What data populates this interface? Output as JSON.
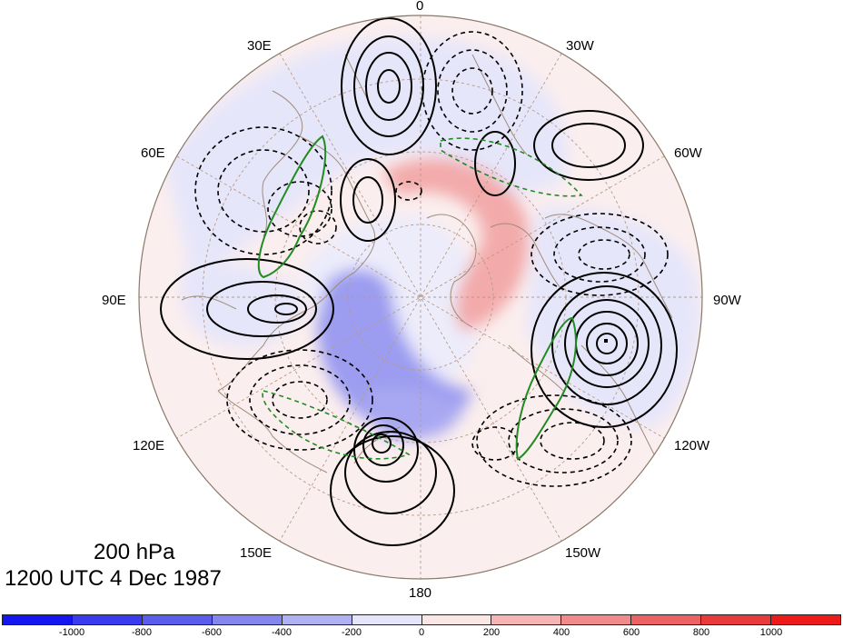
{
  "map": {
    "projection": "north-polar-stereographic",
    "level_label": "200 hPa",
    "time_label": "1200 UTC 4 Dec 1987",
    "lon_labels": {
      "l0": "0",
      "l30w": "30W",
      "l60w": "60W",
      "l90w": "90W",
      "l120w": "120W",
      "l150w": "150W",
      "l180": "180",
      "l150e": "150E",
      "l120e": "120E",
      "l90e": "90E",
      "l60e": "60E",
      "l30e": "30E"
    },
    "colorbar": {
      "labels": [
        "-1000",
        "-800",
        "-600",
        "-400",
        "-200",
        "0",
        "200",
        "400",
        "600",
        "800",
        "1000"
      ],
      "colors": [
        "#1515f0",
        "#3a3aee",
        "#5c5cec",
        "#8585ee",
        "#b0b0f4",
        "#e4e4fb",
        "#fbe6e6",
        "#f6b4b4",
        "#f18a8a",
        "#ec6262",
        "#e83a3a",
        "#ee1a1a"
      ]
    },
    "coastline_color": "#a08c7a",
    "contour_color_solid": "#000000",
    "contour_color_green": "#228b22"
  }
}
